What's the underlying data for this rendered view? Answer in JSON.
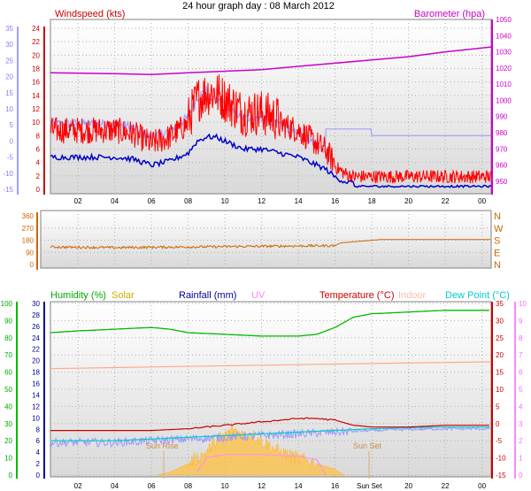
{
  "page": {
    "title": "24 hour graph day : 08 March 2012"
  },
  "top_panel": {
    "left_label": "Windspeed (kts)",
    "right_label": "Barometer (hpa)",
    "left_ticks_inner": [
      "0",
      "2",
      "4",
      "6",
      "8",
      "10",
      "12",
      "14",
      "16",
      "18",
      "20",
      "22",
      "24"
    ],
    "left_ticks_outer": [
      "-15",
      "-10",
      "-5",
      "0",
      "5",
      "10",
      "15",
      "20",
      "25",
      "30",
      "35"
    ],
    "right_ticks": [
      "950",
      "960",
      "970",
      "980",
      "990",
      "1000",
      "1010",
      "1020",
      "1030",
      "1040",
      "1050"
    ]
  },
  "mid_panel": {
    "left_ticks": [
      "0",
      "90",
      "180",
      "270",
      "360"
    ],
    "right_labels": [
      "N",
      "W",
      "S",
      "E",
      "N"
    ]
  },
  "bottom_panel": {
    "legend": {
      "humidity": "Humidity (%)",
      "solar": "Solar",
      "rainfall": "Rainfall (mm)",
      "uv": "UV",
      "temperature": "Temperature (°C)",
      "indoor": "Indoor",
      "dewpoint": "Dew Point (°C)"
    },
    "left_outer_ticks": [
      "0",
      "10",
      "20",
      "30",
      "40",
      "50",
      "60",
      "70",
      "80",
      "90",
      "100"
    ],
    "left_inner_ticks": [
      "0",
      "2",
      "4",
      "6",
      "8",
      "10",
      "12",
      "14",
      "16",
      "18",
      "20",
      "22",
      "24",
      "26",
      "28",
      "30"
    ],
    "right_inner_ticks": [
      "-15",
      "-10",
      "-5",
      "0",
      "5",
      "10",
      "15",
      "20",
      "25",
      "30",
      "35"
    ],
    "right_outer_ticks": [
      "0",
      "1",
      "2",
      "3",
      "4",
      "5",
      "6",
      "7",
      "8",
      "9",
      "10"
    ],
    "sun_rise": "Sun Rise",
    "sun_set": "Sun Set",
    "sun_set_axis": "Sun Set"
  },
  "x_ticks": [
    "02",
    "04",
    "06",
    "08",
    "10",
    "12",
    "14",
    "16",
    "18",
    "20",
    "22",
    "00"
  ],
  "bottom_x_ticks": [
    "02",
    "04",
    "06",
    "08",
    "10",
    "12",
    "14",
    "16",
    "20",
    "22",
    "00"
  ],
  "colors": {
    "wind_gust": "#ff0000",
    "wind_avg": "#0000cc",
    "wind_dir_light": "#a0a0ff",
    "barometer": "#cc00cc",
    "direction": "#cc6600",
    "humidity": "#00bb00",
    "solar": "#ffc040",
    "rainfall": "#000099",
    "uv": "#ff88ff",
    "temperature": "#cc0000",
    "indoor": "#ffaa88",
    "dewpoint": "#00cccc"
  },
  "chart_data": [
    {
      "type": "line",
      "title": "24 hour graph day : 08 March 2012",
      "x_unit": "hour",
      "xlim": [
        0.5,
        24.5
      ],
      "series": [
        {
          "name": "Windspeed (kts)",
          "axis": "left",
          "ylim": [
            0,
            25
          ],
          "x": [
            0.5,
            2,
            3,
            4,
            5,
            6,
            7,
            8,
            8.5,
            9,
            9.5,
            10,
            11,
            12,
            13,
            14,
            15,
            15.5,
            16,
            16.5,
            17,
            18,
            19,
            20,
            21,
            22,
            23,
            24.5
          ],
          "values": [
            8,
            8,
            8,
            8,
            7.5,
            6,
            7,
            9,
            12,
            13,
            13,
            12,
            10,
            10,
            9,
            8,
            6,
            5,
            3,
            2,
            1.5,
            1.5,
            1.5,
            1.5,
            1.5,
            1.5,
            1.5,
            1.5
          ]
        },
        {
          "name": "Barometer (hpa)",
          "axis": "right",
          "ylim": [
            945,
            1050
          ],
          "x": [
            0.5,
            4,
            6,
            8,
            10,
            12,
            14,
            16,
            18,
            20,
            22,
            24.5
          ],
          "values": [
            1017,
            1016.5,
            1016,
            1017,
            1018,
            1019,
            1021,
            1023,
            1025,
            1027,
            1030,
            1033
          ]
        }
      ]
    },
    {
      "type": "line",
      "series": [
        {
          "name": "Direction",
          "ylim": [
            0,
            360
          ],
          "x": [
            0.5,
            4,
            8,
            12,
            16,
            16.3,
            18.5,
            24.5
          ],
          "values": [
            130,
            125,
            130,
            135,
            140,
            160,
            185,
            185
          ]
        }
      ]
    },
    {
      "type": "line",
      "series": [
        {
          "name": "Humidity (%)",
          "ylim": [
            0,
            100
          ],
          "x": [
            0.5,
            2,
            4,
            6,
            7,
            8,
            10,
            12,
            14,
            15,
            16,
            17,
            18,
            20,
            22,
            24.5
          ],
          "values": [
            83,
            84,
            85,
            86,
            85,
            83,
            82,
            81,
            81,
            82,
            86,
            92,
            94,
            95,
            96,
            96
          ]
        },
        {
          "name": "Temperature (°C)",
          "ylim": [
            -15,
            35
          ],
          "x": [
            0.5,
            4,
            6,
            8,
            9,
            10,
            11,
            12,
            13,
            14,
            15,
            16,
            17,
            18,
            20,
            22,
            24.5
          ],
          "values": [
            -2,
            -2,
            -2,
            -1.5,
            -1,
            -0.5,
            0,
            0.5,
            1,
            1.5,
            1.5,
            1,
            -0.5,
            -1,
            -1,
            -0.5,
            -0.5
          ]
        },
        {
          "name": "Dew Point (°C)",
          "ylim": [
            -15,
            35
          ],
          "x": [
            0.5,
            4,
            6,
            8,
            10,
            12,
            14,
            16,
            18,
            20,
            22,
            24.5
          ],
          "values": [
            -5,
            -5,
            -4.5,
            -4,
            -3.5,
            -3,
            -2.5,
            -2,
            -1.5,
            -1.2,
            -1,
            -1
          ]
        },
        {
          "name": "Indoor",
          "ylim": [
            -15,
            35
          ],
          "x": [
            0.5,
            6,
            12,
            18,
            24.5
          ],
          "values": [
            16,
            16.5,
            17,
            17.5,
            18
          ]
        },
        {
          "name": "Solar",
          "ylim": [
            0,
            30
          ],
          "x": [
            6.3,
            7,
            8,
            8.5,
            9,
            9.5,
            10,
            10.5,
            11,
            11.5,
            12,
            12.5,
            13,
            14,
            15,
            16,
            16.5
          ],
          "values": [
            0,
            0.5,
            2,
            3,
            4,
            6,
            7,
            8,
            7,
            7,
            6,
            5,
            4,
            3,
            2,
            1,
            0
          ]
        },
        {
          "name": "UV",
          "ylim": [
            0,
            10
          ],
          "x": [
            8.5,
            9,
            10,
            12,
            14,
            15,
            15.5
          ],
          "values": [
            0.2,
            1,
            1.2,
            1.2,
            1.1,
            0.9,
            0
          ]
        }
      ]
    }
  ]
}
